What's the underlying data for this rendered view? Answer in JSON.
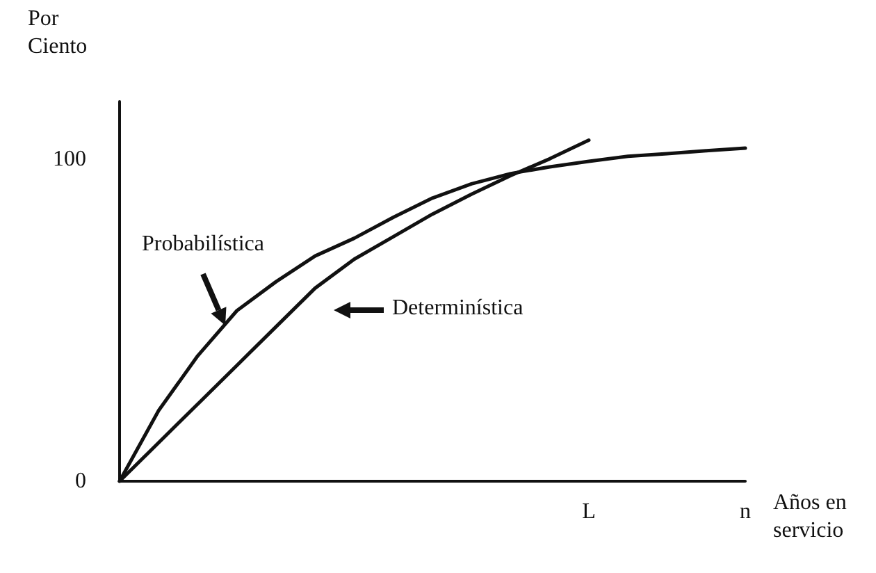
{
  "chart_data": {
    "type": "line",
    "ylabel": "Por Ciento",
    "xlabel": "Años en servicio",
    "categories": [
      null,
      null,
      null,
      null,
      null,
      null,
      null,
      null,
      null,
      null,
      null,
      null,
      "L",
      null,
      null,
      null,
      "n"
    ],
    "ylim": [
      0,
      118
    ],
    "yticks": [
      0,
      100
    ],
    "series": [
      {
        "color": "#111111",
        "values": [
          0,
          22,
          39,
          53,
          62,
          70,
          75.5,
          82,
          88,
          92.4,
          95.6,
          97.7,
          99.4,
          101,
          101.8,
          102.7,
          103.5
        ]
      },
      {
        "color": "#111111",
        "values": [
          0,
          12,
          24,
          36,
          48,
          60,
          69,
          76,
          83,
          89.2,
          95,
          100.2,
          106,
          null,
          null,
          null,
          null
        ]
      }
    ],
    "annotations": [
      "Probabilística",
      "Determinística"
    ],
    "grid": false,
    "marker": "none",
    "line_style": "solid"
  }
}
